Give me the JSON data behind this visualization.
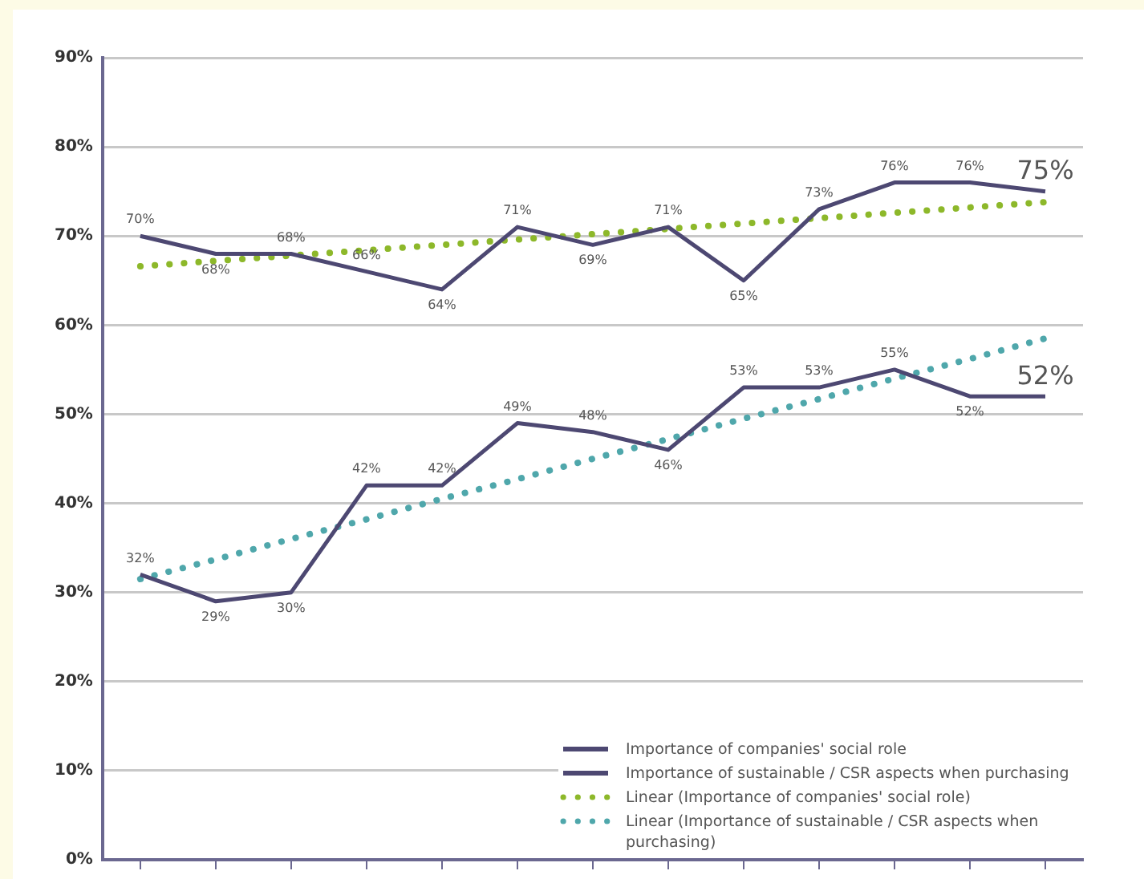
{
  "chart_data": {
    "type": "line",
    "categories": [
      null,
      null,
      null,
      null,
      null,
      null,
      null,
      null,
      null,
      null,
      null,
      null,
      null
    ],
    "series": [
      {
        "name": "Importance of companies' social role",
        "color": "#4d4872",
        "line_style": "solid",
        "values": [
          70,
          68,
          68,
          66,
          64,
          71,
          69,
          71,
          65,
          73,
          76,
          76,
          75
        ],
        "value_labels": [
          "70%",
          "68%",
          "68%",
          "66%",
          "64%",
          "71%",
          "69%",
          "71%",
          "65%",
          "73%",
          "76%",
          "76%",
          "75%"
        ]
      },
      {
        "name": "Importance of sustainable / CSR aspects when purchasing",
        "color": "#4d4872",
        "line_style": "solid",
        "values": [
          32,
          29,
          30,
          42,
          42,
          49,
          48,
          46,
          53,
          53,
          55,
          52,
          52
        ],
        "value_labels": [
          "32%",
          "29%",
          "30%",
          "42%",
          "42%",
          "49%",
          "48%",
          "46%",
          "53%",
          "53%",
          "55%",
          "52%",
          "52%"
        ]
      },
      {
        "name": "Linear (Importance of companies' social role)",
        "color": "#8db82a",
        "line_style": "dotted",
        "values": [
          66.6,
          67.2,
          67.8,
          68.4,
          69.0,
          69.6,
          70.2,
          70.8,
          71.4,
          72.0,
          72.6,
          73.2,
          73.8
        ]
      },
      {
        "name": "Linear (Importance of sustainable / CSR aspects when purchasing)",
        "color": "#4fa7ab",
        "line_style": "dotted",
        "values": [
          31.5,
          33.7,
          36.0,
          38.2,
          40.5,
          42.7,
          45.0,
          47.2,
          49.5,
          51.7,
          54.0,
          56.2,
          58.5
        ]
      }
    ],
    "ylim": [
      0,
      90
    ],
    "yticks": [
      {
        "value": 0,
        "label": "0%"
      },
      {
        "value": 10,
        "label": "10%"
      },
      {
        "value": 20,
        "label": "20%"
      },
      {
        "value": 30,
        "label": "30%"
      },
      {
        "value": 40,
        "label": "40%"
      },
      {
        "value": 50,
        "label": "50%"
      },
      {
        "value": 60,
        "label": "60%"
      },
      {
        "value": 70,
        "label": "70%"
      },
      {
        "value": 80,
        "label": "80%"
      },
      {
        "value": 90,
        "label": "90%"
      }
    ],
    "grid": "y",
    "marker": "none",
    "legend": "bottom right"
  }
}
